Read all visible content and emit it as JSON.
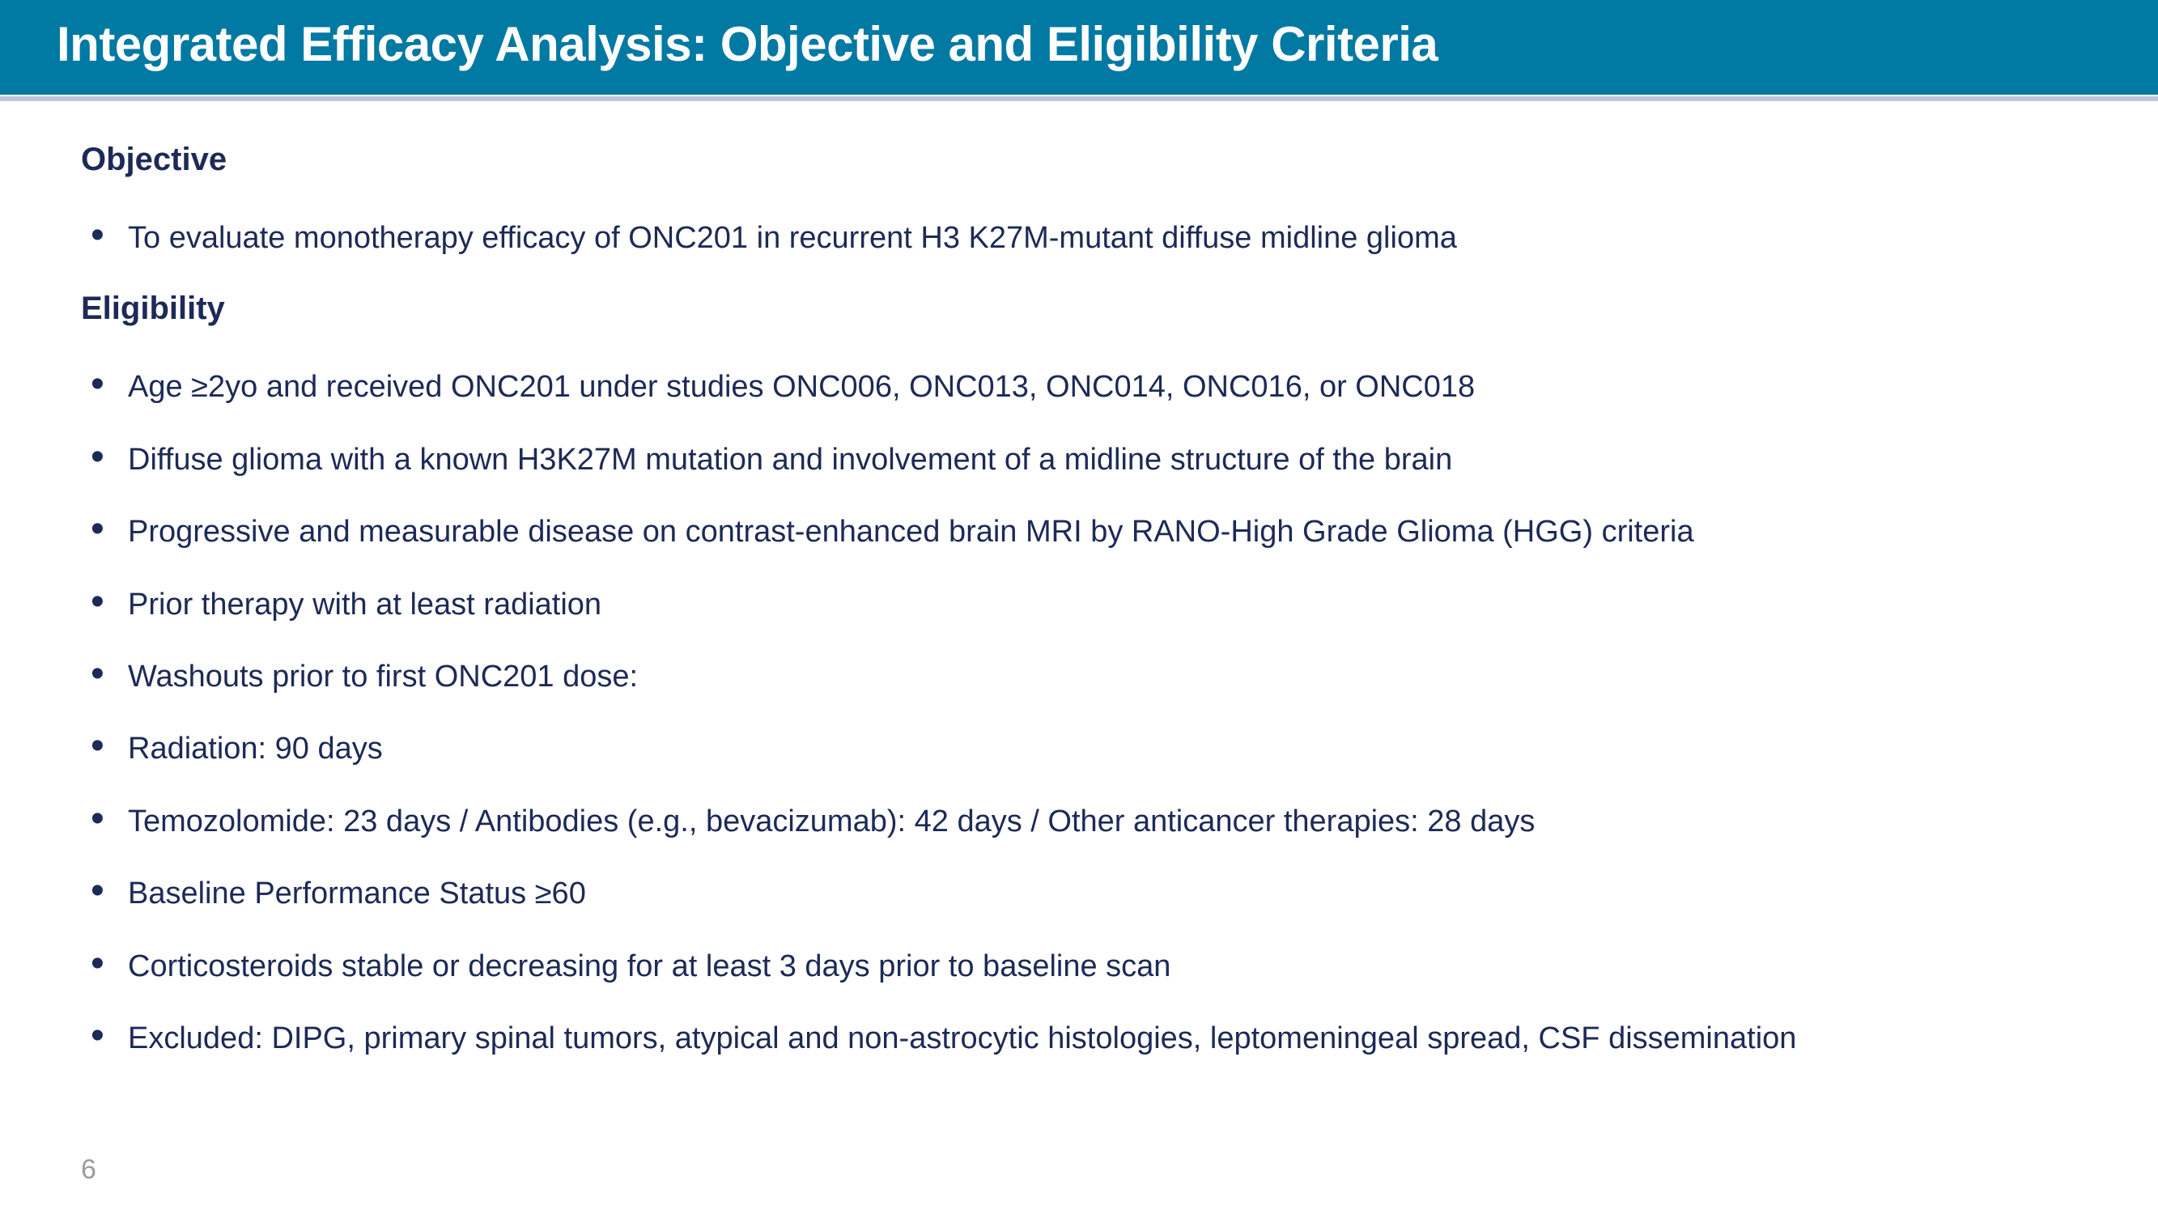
{
  "header": {
    "title": "Integrated Efficacy Analysis: Objective and Eligibility Criteria",
    "bg_color": "#0079a3",
    "text_color": "#ffffff",
    "title_fontsize": 60,
    "title_fontweight": 700
  },
  "sections": {
    "objective": {
      "heading": "Objective",
      "items": [
        "To evaluate monotherapy efficacy of ONC201 in recurrent H3 K27M-mutant diffuse midline glioma"
      ]
    },
    "eligibility": {
      "heading": "Eligibility",
      "items": [
        "Age ≥2yo and received ONC201 under studies ONC006, ONC013, ONC014, ONC016, or ONC018",
        "Diffuse glioma with a known H3K27M mutation and involvement of a midline structure of the brain",
        "Progressive and measurable disease on contrast-enhanced brain MRI by RANO-High Grade Glioma (HGG) criteria",
        "Prior therapy with at least radiation",
        "Washouts prior to first ONC201 dose:",
        "Radiation: 90 days",
        "Temozolomide: 23 days / Antibodies (e.g., bevacizumab): 42 days / Other anticancer therapies: 28 days",
        "Baseline Performance Status ≥60",
        "Corticosteroids stable or decreasing for at least 3 days prior to baseline scan",
        "Excluded: DIPG, primary spinal tumors, atypical and non-astrocytic histologies, leptomeningeal spread, CSF dissemination"
      ]
    }
  },
  "styling": {
    "body_text_color": "#1d2a57",
    "heading_color": "#1d2a57",
    "heading_fontsize": 40,
    "heading_fontweight": 700,
    "bullet_fontsize": 38,
    "page_number_color": "#9c9c9c",
    "page_number_fontsize": 34,
    "background_color": "#ffffff"
  },
  "page_number": "6"
}
